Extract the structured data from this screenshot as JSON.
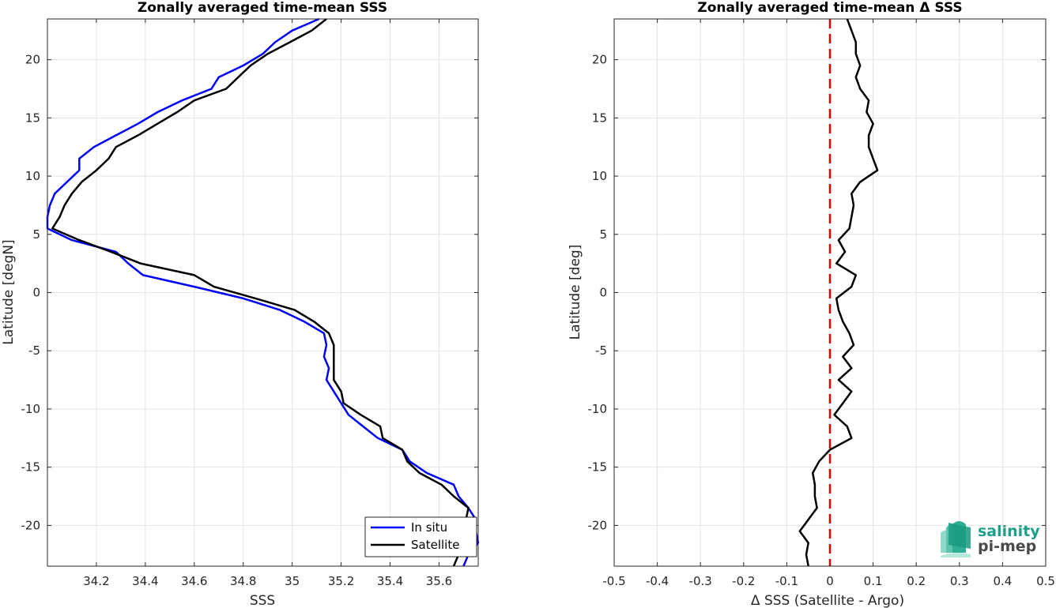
{
  "chart_data": [
    {
      "type": "line",
      "title": "Zonally averaged time-mean SSS",
      "xlabel": "SSS",
      "ylabel": "Latitude [degN]",
      "xlim": [
        34.0,
        35.76
      ],
      "ylim": [
        -23.5,
        23.5
      ],
      "xticks": [
        34.2,
        34.4,
        34.6,
        34.8,
        35,
        35.2,
        35.4,
        35.6
      ],
      "xtick_labels": [
        "34.2",
        "34.4",
        "34.6",
        "34.8",
        "35",
        "35.2",
        "35.4",
        "35.6"
      ],
      "yticks": [
        -20,
        -15,
        -10,
        -5,
        0,
        5,
        10,
        15,
        20
      ],
      "ytick_labels": [
        "-20",
        "-15",
        "-10",
        "-5",
        "0",
        "5",
        "10",
        "15",
        "20"
      ],
      "grid": true,
      "legend": "bottom-right",
      "series": [
        {
          "name": "In situ",
          "color": "#0000ff",
          "points": [
            [
              35.11,
              23.5
            ],
            [
              35.0,
              22.5
            ],
            [
              34.93,
              21.5
            ],
            [
              34.88,
              20.5
            ],
            [
              34.8,
              19.5
            ],
            [
              34.7,
              18.5
            ],
            [
              34.67,
              17.5
            ],
            [
              34.55,
              16.5
            ],
            [
              34.45,
              15.5
            ],
            [
              34.37,
              14.5
            ],
            [
              34.28,
              13.5
            ],
            [
              34.19,
              12.5
            ],
            [
              34.13,
              11.5
            ],
            [
              34.13,
              10.5
            ],
            [
              34.08,
              9.5
            ],
            [
              34.03,
              8.5
            ],
            [
              34.01,
              7.5
            ],
            [
              34.0,
              6.5
            ],
            [
              34.0,
              5.5
            ],
            [
              34.1,
              4.5
            ],
            [
              34.28,
              3.5
            ],
            [
              34.33,
              2.5
            ],
            [
              34.39,
              1.5
            ],
            [
              34.6,
              0.5
            ],
            [
              34.8,
              -0.5
            ],
            [
              34.95,
              -1.5
            ],
            [
              35.05,
              -2.5
            ],
            [
              35.13,
              -3.5
            ],
            [
              35.14,
              -4.5
            ],
            [
              35.13,
              -5.5
            ],
            [
              35.15,
              -6.5
            ],
            [
              35.14,
              -7.5
            ],
            [
              35.17,
              -8.5
            ],
            [
              35.2,
              -9.5
            ],
            [
              35.23,
              -10.5
            ],
            [
              35.29,
              -11.5
            ],
            [
              35.35,
              -12.5
            ],
            [
              35.45,
              -13.5
            ],
            [
              35.48,
              -14.5
            ],
            [
              35.55,
              -15.5
            ],
            [
              35.66,
              -16.5
            ],
            [
              35.68,
              -17.5
            ],
            [
              35.72,
              -18.5
            ],
            [
              35.75,
              -19.5
            ],
            [
              35.75,
              -20.5
            ],
            [
              35.76,
              -21.5
            ],
            [
              35.72,
              -22.5
            ],
            [
              35.7,
              -23.5
            ]
          ]
        },
        {
          "name": "Satellite",
          "color": "#000000",
          "points": [
            [
              35.14,
              23.5
            ],
            [
              35.08,
              22.5
            ],
            [
              34.99,
              21.5
            ],
            [
              34.9,
              20.5
            ],
            [
              34.83,
              19.5
            ],
            [
              34.78,
              18.5
            ],
            [
              34.73,
              17.5
            ],
            [
              34.6,
              16.5
            ],
            [
              34.53,
              15.5
            ],
            [
              34.45,
              14.5
            ],
            [
              34.37,
              13.5
            ],
            [
              34.28,
              12.5
            ],
            [
              34.25,
              11.5
            ],
            [
              34.2,
              10.5
            ],
            [
              34.14,
              9.5
            ],
            [
              34.1,
              8.5
            ],
            [
              34.07,
              7.5
            ],
            [
              34.05,
              6.5
            ],
            [
              34.02,
              5.5
            ],
            [
              34.13,
              4.5
            ],
            [
              34.26,
              3.5
            ],
            [
              34.38,
              2.5
            ],
            [
              34.6,
              1.5
            ],
            [
              34.68,
              0.5
            ],
            [
              34.85,
              -0.5
            ],
            [
              35.01,
              -1.5
            ],
            [
              35.09,
              -2.5
            ],
            [
              35.15,
              -3.5
            ],
            [
              35.17,
              -4.5
            ],
            [
              35.17,
              -5.5
            ],
            [
              35.17,
              -6.5
            ],
            [
              35.17,
              -7.5
            ],
            [
              35.2,
              -8.5
            ],
            [
              35.21,
              -9.5
            ],
            [
              35.28,
              -10.5
            ],
            [
              35.36,
              -11.5
            ],
            [
              35.37,
              -12.5
            ],
            [
              35.45,
              -13.5
            ],
            [
              35.47,
              -14.5
            ],
            [
              35.52,
              -15.5
            ],
            [
              35.61,
              -16.5
            ],
            [
              35.66,
              -17.5
            ],
            [
              35.72,
              -18.5
            ],
            [
              35.71,
              -19.5
            ],
            [
              35.7,
              -20.5
            ],
            [
              35.69,
              -21.5
            ],
            [
              35.68,
              -22.5
            ],
            [
              35.66,
              -23.5
            ]
          ]
        }
      ]
    },
    {
      "type": "line",
      "title": "Zonally averaged time-mean Δ SSS",
      "xlabel": "Δ SSS (Satellite - Argo)",
      "ylabel": "Latitude [deg]",
      "xlim": [
        -0.5,
        0.5
      ],
      "ylim": [
        -23.5,
        23.5
      ],
      "xticks": [
        -0.5,
        -0.4,
        -0.3,
        -0.2,
        -0.1,
        0,
        0.1,
        0.2,
        0.3,
        0.4,
        0.5
      ],
      "xtick_labels": [
        "-0.5",
        "-0.4",
        "-0.3",
        "-0.2",
        "-0.1",
        "0",
        "0.1",
        "0.2",
        "0.3",
        "0.4",
        "0.5"
      ],
      "yticks": [
        -20,
        -15,
        -10,
        -5,
        0,
        5,
        10,
        15,
        20
      ],
      "ytick_labels": [
        "-20",
        "-15",
        "-10",
        "-5",
        "0",
        "5",
        "10",
        "15",
        "20"
      ],
      "grid": true,
      "reference_line": {
        "x": 0,
        "color": "#e00000",
        "style": "dashed"
      },
      "series": [
        {
          "name": "",
          "color": "#000000",
          "points": [
            [
              0.04,
              23.5
            ],
            [
              0.05,
              22.5
            ],
            [
              0.06,
              21.5
            ],
            [
              0.06,
              20.5
            ],
            [
              0.07,
              19.5
            ],
            [
              0.06,
              18.5
            ],
            [
              0.07,
              17.5
            ],
            [
              0.09,
              16.5
            ],
            [
              0.085,
              15.5
            ],
            [
              0.1,
              14.5
            ],
            [
              0.09,
              13.5
            ],
            [
              0.09,
              12.5
            ],
            [
              0.1,
              11.5
            ],
            [
              0.11,
              10.5
            ],
            [
              0.07,
              9.5
            ],
            [
              0.05,
              8.5
            ],
            [
              0.055,
              7.5
            ],
            [
              0.05,
              6.5
            ],
            [
              0.045,
              5.5
            ],
            [
              0.02,
              4.5
            ],
            [
              0.035,
              3.5
            ],
            [
              0.015,
              2.5
            ],
            [
              0.06,
              1.5
            ],
            [
              0.05,
              0.5
            ],
            [
              0.015,
              -0.5
            ],
            [
              0.02,
              -1.5
            ],
            [
              0.03,
              -2.5
            ],
            [
              0.045,
              -3.5
            ],
            [
              0.055,
              -4.5
            ],
            [
              0.03,
              -5.5
            ],
            [
              0.05,
              -6.5
            ],
            [
              0.02,
              -7.5
            ],
            [
              0.05,
              -8.5
            ],
            [
              0.03,
              -9.5
            ],
            [
              0.01,
              -10.5
            ],
            [
              0.04,
              -11.5
            ],
            [
              0.05,
              -12.5
            ],
            [
              0.0,
              -13.5
            ],
            [
              -0.025,
              -14.5
            ],
            [
              -0.04,
              -15.5
            ],
            [
              -0.035,
              -16.5
            ],
            [
              -0.035,
              -17.5
            ],
            [
              -0.03,
              -18.5
            ],
            [
              -0.05,
              -19.5
            ],
            [
              -0.07,
              -20.5
            ],
            [
              -0.05,
              -21.5
            ],
            [
              -0.055,
              -22.5
            ],
            [
              -0.05,
              -23.5
            ]
          ]
        }
      ]
    }
  ],
  "legend": {
    "entries": [
      {
        "label": "In situ",
        "color": "#0000ff"
      },
      {
        "label": "Satellite",
        "color": "#000000"
      }
    ]
  },
  "logo": {
    "line1": "salinity",
    "line2": "pi-mep"
  }
}
